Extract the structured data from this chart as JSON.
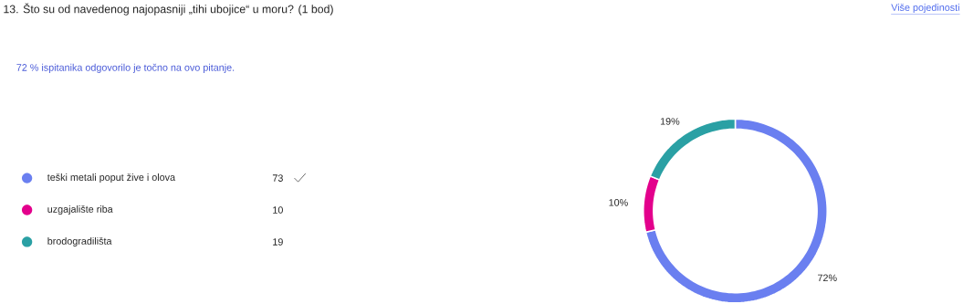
{
  "chart_data": {
    "type": "donut",
    "title": "13. Što su od navedenog najopasniji „tihi ubojice“ u moru? (1 bod)",
    "subtitle": "72 % ispitanika odgovorilo je točno na ovo pitanje.",
    "annotations": [
      "Više pojedinosti",
      "73",
      "10",
      "19"
    ],
    "categories": [
      "teški metali poput žive i olova",
      "uzgajalište riba",
      "brodogradilišta"
    ],
    "values": [
      72,
      10,
      19
    ],
    "value_labels": [
      "72%",
      "10%",
      "19%"
    ],
    "colors": [
      "#6a7ff0",
      "#e3008c",
      "#2aa0a4"
    ],
    "legend": "left"
  }
}
